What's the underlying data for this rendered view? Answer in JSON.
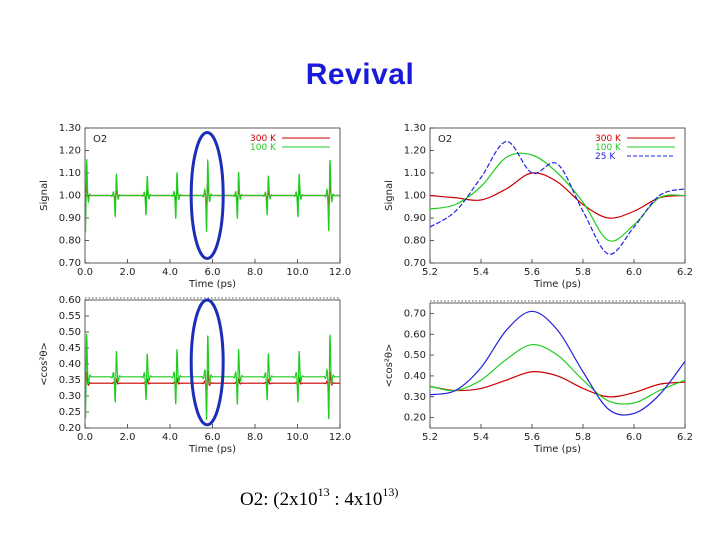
{
  "slide": {
    "title": "Revival",
    "caption": {
      "prefix": "O2:  (2x10",
      "exp1": "13",
      "middle": " : 4x10",
      "exp2": "13)"
    },
    "title_color": "#1a1adb",
    "highlight_color": "#1c2eb8"
  },
  "chart_data": [
    {
      "type": "line",
      "panel": "top-left",
      "molecule_label": "O2",
      "title": "",
      "xlabel": "Time (ps)",
      "ylabel": "Signal",
      "xlim": [
        0,
        12
      ],
      "ylim": [
        0.7,
        1.3
      ],
      "x_ticks": [
        0,
        2,
        4,
        6,
        8,
        10,
        12
      ],
      "x_tick_labels": [
        "0.0",
        "2.0",
        "4.0",
        "6.0",
        "8.0",
        "10.0",
        "12.0"
      ],
      "y_ticks": [
        0.7,
        0.8,
        0.9,
        1.0,
        1.1,
        1.2,
        1.3
      ],
      "y_tick_labels": [
        "0.70",
        "0.80",
        "0.90",
        "1.00",
        "1.10",
        "1.20",
        "1.30"
      ],
      "baseline": 1.0,
      "revival_times": [
        0.05,
        1.45,
        2.9,
        4.3,
        5.75,
        7.2,
        8.6,
        10.05,
        11.5
      ],
      "legend": [
        "300 K",
        "100 K"
      ],
      "legend_position": "top-right",
      "series": [
        {
          "name": "300 K",
          "color": "#cc0000",
          "peak_amplitude": 0.1,
          "revival_strengths": [
            0.9,
            0.3,
            0.3,
            0.35,
            1.0,
            0.35,
            0.3,
            0.35,
            0.9
          ]
        },
        {
          "name": "100 K",
          "color": "#22cc22",
          "peak_amplitude": 0.24,
          "revival_strengths": [
            1.0,
            0.6,
            0.55,
            0.65,
            1.0,
            0.65,
            0.55,
            0.6,
            1.0
          ]
        }
      ],
      "highlight": {
        "shape": "ellipse",
        "x_center": 5.75,
        "y_range": [
          0.72,
          1.28
        ]
      }
    },
    {
      "type": "line",
      "panel": "top-right",
      "molecule_label": "O2",
      "title": "",
      "xlabel": "Time (ps)",
      "ylabel": "Signal",
      "xlim": [
        5.2,
        6.2
      ],
      "ylim": [
        0.7,
        1.3
      ],
      "x_ticks": [
        5.2,
        5.4,
        5.6,
        5.8,
        6.0,
        6.2
      ],
      "x_tick_labels": [
        "5.2",
        "5.4",
        "5.6",
        "5.8",
        "6.0",
        "6.2"
      ],
      "y_ticks": [
        0.7,
        0.8,
        0.9,
        1.0,
        1.1,
        1.2,
        1.3
      ],
      "y_tick_labels": [
        "0.70",
        "0.80",
        "0.90",
        "1.00",
        "1.10",
        "1.20",
        "1.30"
      ],
      "legend": [
        "300 K",
        "100 K",
        "25 K"
      ],
      "legend_position": "top-right",
      "series": [
        {
          "name": "300 K",
          "color": "#cc0000",
          "dash": false,
          "x": [
            5.2,
            5.3,
            5.4,
            5.5,
            5.6,
            5.7,
            5.8,
            5.9,
            6.0,
            6.1,
            6.2
          ],
          "y": [
            1.0,
            0.99,
            0.98,
            1.03,
            1.1,
            1.06,
            0.96,
            0.9,
            0.93,
            0.99,
            1.0
          ]
        },
        {
          "name": "100 K",
          "color": "#22cc22",
          "dash": false,
          "x": [
            5.2,
            5.3,
            5.4,
            5.5,
            5.6,
            5.7,
            5.8,
            5.9,
            6.0,
            6.1,
            6.2
          ],
          "y": [
            0.94,
            0.96,
            1.04,
            1.17,
            1.18,
            1.1,
            0.97,
            0.8,
            0.87,
            0.99,
            1.0
          ]
        },
        {
          "name": "25 K",
          "color": "#2222dd",
          "dash": true,
          "x": [
            5.2,
            5.3,
            5.4,
            5.5,
            5.6,
            5.7,
            5.8,
            5.9,
            6.0,
            6.1,
            6.2
          ],
          "y": [
            0.86,
            0.93,
            1.08,
            1.24,
            1.1,
            1.14,
            0.93,
            0.74,
            0.86,
            1.0,
            1.03
          ]
        }
      ]
    },
    {
      "type": "line",
      "panel": "bottom-left",
      "title": "",
      "xlabel": "Time (ps)",
      "ylabel": "<cos²θ>",
      "xlim": [
        0,
        12
      ],
      "ylim": [
        0.2,
        0.6
      ],
      "x_ticks": [
        0,
        2,
        4,
        6,
        8,
        10,
        12
      ],
      "x_tick_labels": [
        "0.0",
        "2.0",
        "4.0",
        "6.0",
        "8.0",
        "10.0",
        "12.0"
      ],
      "y_ticks": [
        0.2,
        0.25,
        0.3,
        0.35,
        0.4,
        0.45,
        0.5,
        0.55,
        0.6
      ],
      "y_tick_labels": [
        "0.20",
        "0.25",
        "0.30",
        "0.35",
        "0.40",
        "0.45",
        "0.50",
        "0.55",
        "0.60"
      ],
      "revival_times": [
        0.05,
        1.45,
        2.9,
        4.3,
        5.75,
        7.2,
        8.6,
        10.05,
        11.5
      ],
      "series": [
        {
          "name": "300 K",
          "color": "#cc0000",
          "baseline": 0.34,
          "peak_amplitude": 0.06,
          "revival_strengths": [
            0.9,
            0.3,
            0.3,
            0.35,
            1.0,
            0.35,
            0.3,
            0.35,
            0.9
          ]
        },
        {
          "name": "100 K",
          "color": "#22cc22",
          "baseline": 0.36,
          "peak_amplitude": 0.2,
          "revival_strengths": [
            1.0,
            0.6,
            0.55,
            0.65,
            1.0,
            0.65,
            0.55,
            0.6,
            1.0
          ]
        }
      ],
      "highlight": {
        "shape": "ellipse",
        "x_center": 5.75,
        "y_range": [
          0.21,
          0.6
        ]
      }
    },
    {
      "type": "line",
      "panel": "bottom-right",
      "title": "",
      "xlabel": "Time (ps)",
      "ylabel": "<cos²θ>",
      "xlim": [
        5.2,
        6.2
      ],
      "ylim": [
        0.15,
        0.75
      ],
      "x_ticks": [
        5.2,
        5.4,
        5.6,
        5.8,
        6.0,
        6.2
      ],
      "x_tick_labels": [
        "5.2",
        "5.4",
        "5.6",
        "5.8",
        "6.0",
        "6.2"
      ],
      "y_ticks": [
        0.2,
        0.3,
        0.4,
        0.5,
        0.6,
        0.7
      ],
      "y_tick_labels": [
        "0.20",
        "0.30",
        "0.40",
        "0.50",
        "0.60",
        "0.70"
      ],
      "series": [
        {
          "name": "300 K",
          "color": "#cc0000",
          "dash": false,
          "x": [
            5.2,
            5.3,
            5.4,
            5.5,
            5.6,
            5.7,
            5.8,
            5.9,
            6.0,
            6.1,
            6.2
          ],
          "y": [
            0.35,
            0.33,
            0.34,
            0.38,
            0.42,
            0.4,
            0.34,
            0.3,
            0.32,
            0.36,
            0.37
          ]
        },
        {
          "name": "100 K",
          "color": "#22cc22",
          "dash": false,
          "x": [
            5.2,
            5.3,
            5.4,
            5.5,
            5.6,
            5.7,
            5.8,
            5.9,
            6.0,
            6.1,
            6.2
          ],
          "y": [
            0.35,
            0.33,
            0.38,
            0.48,
            0.55,
            0.5,
            0.38,
            0.28,
            0.27,
            0.33,
            0.38
          ]
        },
        {
          "name": "25 K",
          "color": "#2222dd",
          "dash": false,
          "x": [
            5.2,
            5.3,
            5.4,
            5.5,
            5.6,
            5.7,
            5.8,
            5.9,
            6.0,
            6.1,
            6.2
          ],
          "y": [
            0.31,
            0.33,
            0.44,
            0.62,
            0.71,
            0.62,
            0.42,
            0.24,
            0.22,
            0.31,
            0.47
          ]
        }
      ]
    }
  ]
}
